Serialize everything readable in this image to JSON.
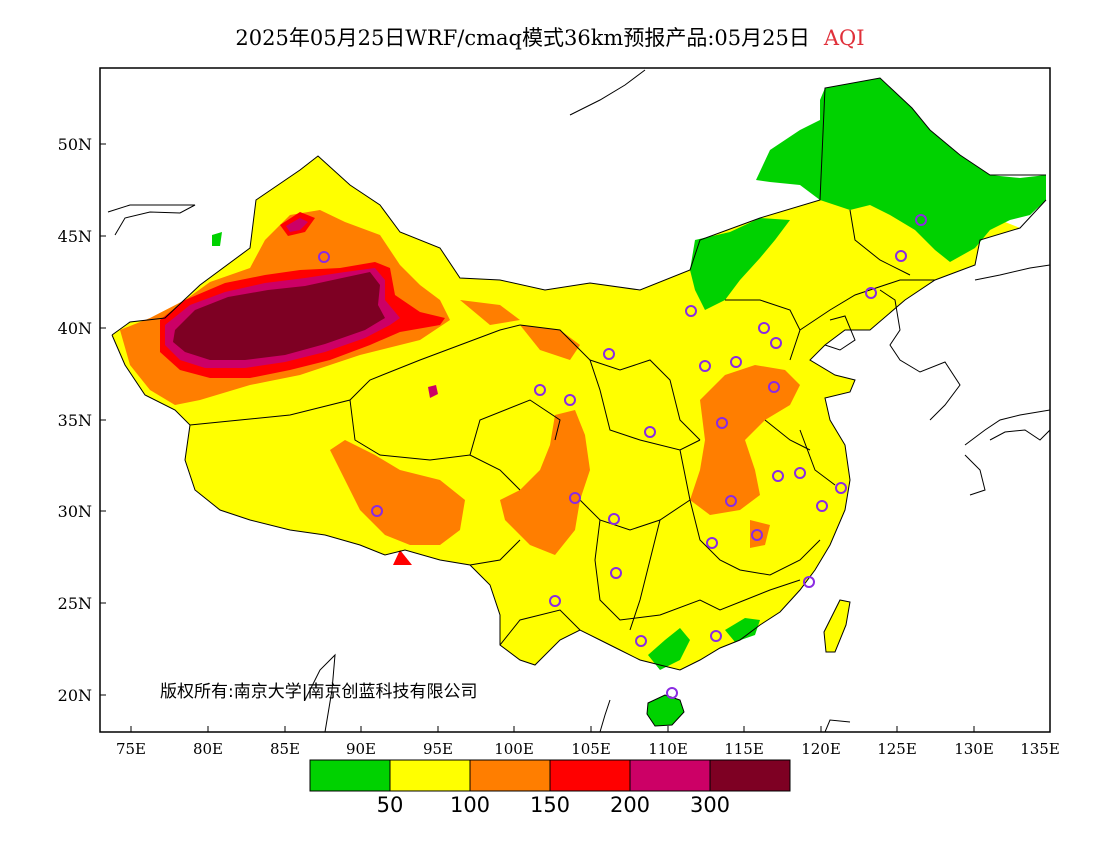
{
  "title": {
    "main": "2025年05月25日WRF/cmaq模式36km预报产品:05月25日",
    "variable": "AQI"
  },
  "axes": {
    "y_labels": [
      "50N",
      "45N",
      "40N",
      "35N",
      "30N",
      "25N",
      "20N"
    ],
    "x_labels": [
      "75E",
      "80E",
      "85E",
      "90E",
      "95E",
      "100E",
      "105E",
      "110E",
      "115E",
      "120E",
      "125E",
      "130E",
      "135E"
    ]
  },
  "copyright": "版权所有:南京大学|南京创蓝科技有限公司",
  "colorbar": {
    "colors": [
      "#00d200",
      "#ffff00",
      "#ff7e00",
      "#ff0000",
      "#cc0066",
      "#7e0023"
    ],
    "labels": [
      "50",
      "100",
      "150",
      "200",
      "300"
    ]
  },
  "legend_colors": {
    "good": "#00d200",
    "moderate": "#ffff00",
    "unhealthy_sensitive": "#ff7e00",
    "unhealthy": "#ff0000",
    "very_unhealthy": "#cc0066",
    "hazardous": "#7e0023",
    "station_marker": "#8a2be2"
  }
}
